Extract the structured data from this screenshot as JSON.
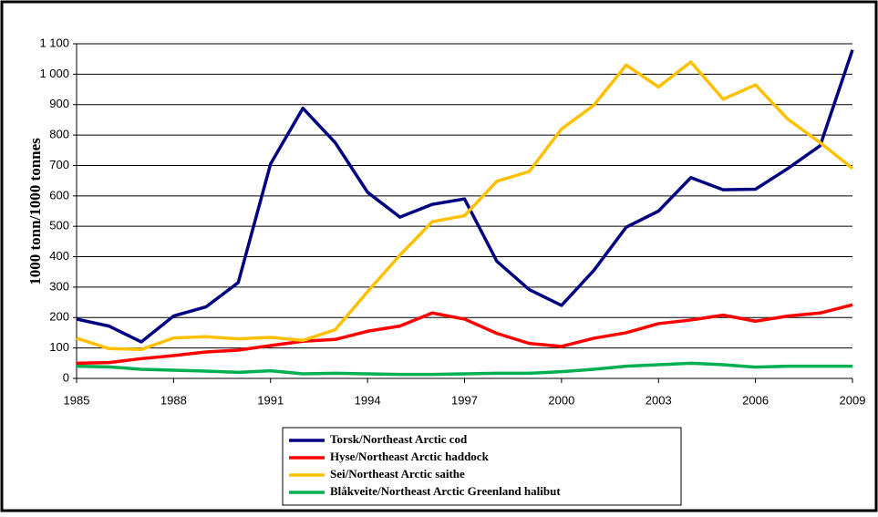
{
  "chart_data": {
    "type": "line",
    "y_label": "1000 tonn/1000 tonnes",
    "x": [
      1985,
      1986,
      1987,
      1988,
      1989,
      1990,
      1991,
      1992,
      1993,
      1994,
      1995,
      1996,
      1997,
      1998,
      1999,
      2000,
      2001,
      2002,
      2003,
      2004,
      2005,
      2006,
      2007,
      2008,
      2009
    ],
    "series": [
      {
        "name": "Torsk/Northeast Arctic cod",
        "color": "#000080",
        "values": [
          195,
          172,
          120,
          205,
          235,
          315,
          705,
          888,
          775,
          612,
          530,
          572,
          590,
          385,
          292,
          240,
          355,
          497,
          550,
          660,
          620,
          622,
          690,
          765,
          1080
        ]
      },
      {
        "name": "Hyse/Northeast Arctic haddock",
        "color": "#ff0000",
        "values": [
          50,
          52,
          65,
          75,
          87,
          93,
          108,
          122,
          128,
          155,
          172,
          215,
          195,
          148,
          115,
          105,
          132,
          150,
          180,
          192,
          208,
          188,
          205,
          215,
          242
        ]
      },
      {
        "name": "Sei/Northeast Arctic saithe",
        "color": "#ffc000",
        "values": [
          132,
          98,
          95,
          133,
          137,
          130,
          135,
          125,
          160,
          285,
          405,
          515,
          535,
          648,
          680,
          820,
          898,
          1030,
          958,
          1040,
          918,
          965,
          852,
          775,
          690
        ]
      },
      {
        "name": "Blåkveite/Northeast Arctic Greenland halibut",
        "color": "#00b050",
        "values": [
          40,
          38,
          30,
          27,
          24,
          20,
          25,
          15,
          17,
          15,
          13,
          13,
          15,
          17,
          17,
          22,
          30,
          40,
          45,
          50,
          45,
          37,
          40,
          40,
          40
        ]
      }
    ],
    "xlim": [
      1985,
      2009
    ],
    "xticks": [
      1985,
      1988,
      1991,
      1994,
      1997,
      2000,
      2003,
      2006,
      2009
    ],
    "ylim": [
      0,
      1100
    ],
    "yticks": [
      0,
      100,
      200,
      300,
      400,
      500,
      600,
      700,
      800,
      900,
      {
        "value": 1000,
        "label": "1 000"
      },
      {
        "value": 1100,
        "label": "1 100"
      }
    ],
    "grid": true
  }
}
